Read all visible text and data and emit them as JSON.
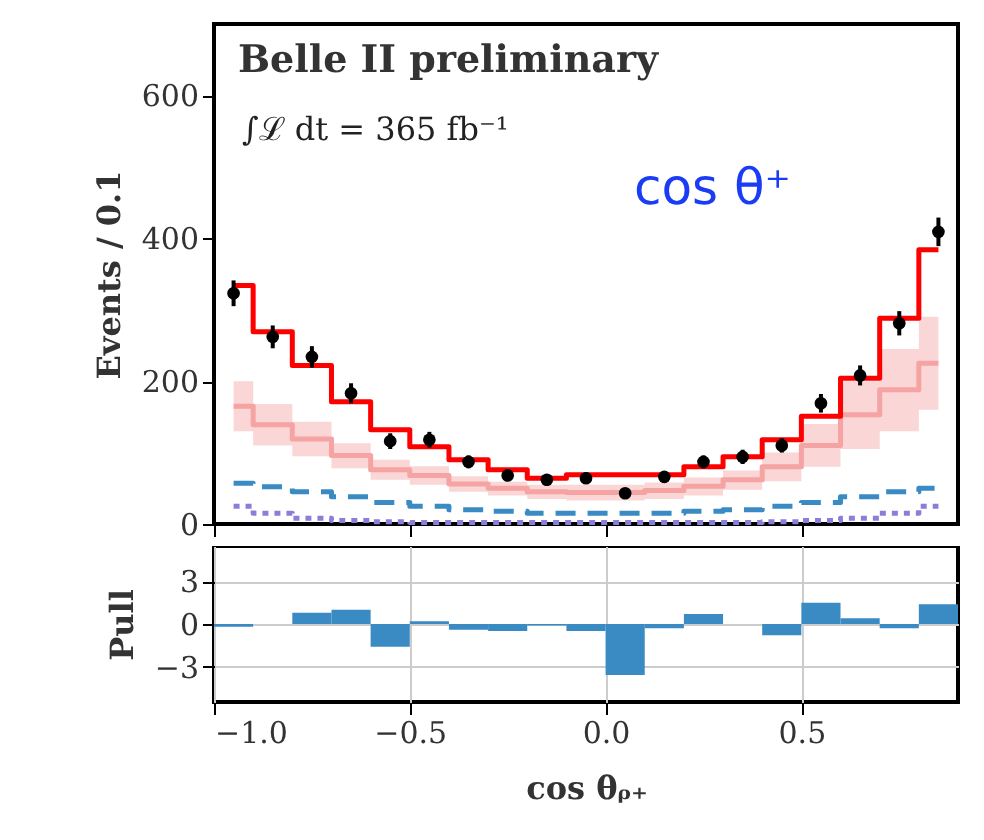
{
  "chart_data": [
    {
      "type": "line",
      "ylabel": "Events / 0.1",
      "annotations": [
        "Belle II preliminary",
        "∫ℒ dt = 365 fb⁻¹",
        "cos θ⁺"
      ],
      "x": [
        -0.95,
        -0.85,
        -0.75,
        -0.65,
        -0.55,
        -0.45,
        -0.35,
        -0.25,
        -0.15,
        -0.05,
        0.05,
        0.15,
        0.25,
        0.35,
        0.45,
        0.55,
        0.65,
        0.75,
        0.85
      ],
      "series": [
        {
          "type": "step",
          "color": "#f5a3a3",
          "values": [
            165,
            139,
            119,
            96,
            76,
            68,
            56,
            50,
            45,
            44,
            44,
            47,
            53,
            62,
            80,
            110,
            153,
            188,
            225
          ],
          "lower": [
            130,
            110,
            95,
            78,
            62,
            55,
            45,
            40,
            35,
            33,
            33,
            35,
            40,
            48,
            60,
            80,
            105,
            130,
            160
          ],
          "upper": [
            200,
            168,
            143,
            113,
            90,
            81,
            67,
            59,
            55,
            55,
            55,
            58,
            65,
            75,
            100,
            140,
            200,
            245,
            290
          ]
        },
        {
          "type": "step",
          "color": "#3a8ac4",
          "line_style": "dashed",
          "values": [
            57,
            52,
            45,
            38,
            30,
            25,
            20,
            18,
            15,
            15,
            15,
            15,
            18,
            20,
            25,
            30,
            38,
            45,
            50
          ]
        },
        {
          "type": "step",
          "color": "#8a7fd8",
          "line_style": "dotted",
          "values": [
            25,
            15,
            8,
            5,
            3,
            2,
            2,
            2,
            2,
            2,
            2,
            2,
            2,
            2,
            3,
            5,
            8,
            15,
            25
          ]
        },
        {
          "type": "step",
          "color": "#ff0000",
          "values": [
            334,
            269,
            222,
            171,
            132,
            108,
            90,
            76,
            64,
            69,
            69,
            69,
            80,
            94,
            118,
            151,
            204,
            288,
            384
          ]
        },
        {
          "type": "scatter",
          "color": "#000000",
          "marker": "circle",
          "values": [
            323,
            262,
            234,
            183,
            116,
            118,
            87,
            68,
            62,
            64,
            43,
            66,
            87,
            94,
            110,
            169,
            208,
            281,
            409
          ],
          "errors": [
            18,
            16,
            15,
            14,
            11,
            11,
            9,
            8,
            8,
            8,
            7,
            8,
            9,
            10,
            10,
            13,
            14,
            17,
            20
          ]
        }
      ],
      "xlim": [
        -1,
        0.9
      ],
      "xticks": [
        {
          "value": -1,
          "label": null
        },
        {
          "value": -0.5,
          "label": null
        },
        {
          "value": 0,
          "label": null
        },
        {
          "value": 0.5,
          "label": null
        }
      ],
      "ylim": [
        0,
        700
      ],
      "yticks": [
        0,
        200,
        400,
        600
      ],
      "tick_labels": "y"
    },
    {
      "type": "histogram",
      "ylabel": "Pull",
      "xlabel": "cos θᵨ₊",
      "color": "#3a8ac4",
      "bins": [
        -1,
        -0.9,
        -0.8,
        -0.7,
        -0.6,
        -0.5,
        -0.4,
        -0.3,
        -0.2,
        -0.1,
        0,
        0.1,
        0.2,
        0.3,
        0.4,
        0.5,
        0.6,
        0.7,
        0.8,
        0.9
      ],
      "values": [
        -0.2,
        0,
        0.8,
        1.0,
        -1.6,
        0.2,
        -0.4,
        -0.5,
        -0.1,
        -0.5,
        -3.6,
        -0.3,
        0.7,
        0,
        -0.8,
        1.5,
        0.4,
        -0.3,
        1.4
      ],
      "xlim": [
        -1,
        0.9
      ],
      "xticks": [
        {
          "value": -1,
          "label": "−1.0"
        },
        {
          "value": -0.5,
          "label": "−0.5"
        },
        {
          "value": 0,
          "label": "0.0"
        },
        {
          "value": 0.5,
          "label": "0.5"
        }
      ],
      "ylim": [
        -5.5,
        5.5
      ],
      "yticks": [
        {
          "value": -3,
          "label": "−3"
        },
        0,
        3
      ],
      "grid": true
    }
  ]
}
